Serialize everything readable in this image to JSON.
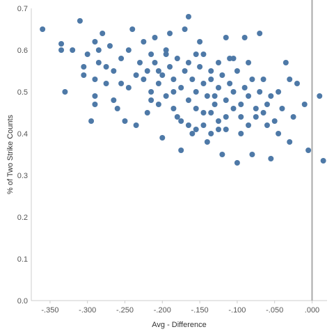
{
  "chart_data": {
    "type": "scatter",
    "xlabel": "Avg - Difference",
    "ylabel": "% of Two Strike Counts",
    "xlim": [
      -0.375,
      0.02
    ],
    "ylim": [
      0.0,
      0.7
    ],
    "x_ticks": [
      -0.35,
      -0.3,
      -0.25,
      -0.2,
      -0.15,
      -0.1,
      -0.05,
      0.0
    ],
    "x_tick_labels": [
      "-.350",
      "-.300",
      "-.250",
      "-.200",
      "-.150",
      "-.100",
      "-.050",
      ".000"
    ],
    "y_ticks": [
      0.0,
      0.1,
      0.2,
      0.3,
      0.4,
      0.5,
      0.6,
      0.7
    ],
    "y_tick_labels": [
      "0.0",
      "0.1",
      "0.2",
      "0.3",
      "0.4",
      "0.5",
      "0.6",
      "0.7"
    ],
    "reference_line_x": 0.0,
    "grid": false,
    "colors": {
      "points": "#4e79a7",
      "reference_line": "#a9a9a9",
      "axis": "#cccccc"
    },
    "points": [
      [
        -0.36,
        0.65
      ],
      [
        -0.335,
        0.615
      ],
      [
        -0.335,
        0.6
      ],
      [
        -0.33,
        0.5
      ],
      [
        -0.32,
        0.6
      ],
      [
        -0.31,
        0.67
      ],
      [
        -0.305,
        0.56
      ],
      [
        -0.305,
        0.54
      ],
      [
        -0.3,
        0.59
      ],
      [
        -0.295,
        0.43
      ],
      [
        -0.29,
        0.62
      ],
      [
        -0.29,
        0.53
      ],
      [
        -0.29,
        0.49
      ],
      [
        -0.29,
        0.47
      ],
      [
        -0.285,
        0.57
      ],
      [
        -0.28,
        0.64
      ],
      [
        -0.275,
        0.56
      ],
      [
        -0.27,
        0.61
      ],
      [
        -0.265,
        0.48
      ],
      [
        -0.26,
        0.46
      ],
      [
        -0.255,
        0.52
      ],
      [
        -0.25,
        0.43
      ],
      [
        -0.245,
        0.6
      ],
      [
        -0.24,
        0.65
      ],
      [
        -0.235,
        0.42
      ],
      [
        -0.23,
        0.57
      ],
      [
        -0.225,
        0.62
      ],
      [
        -0.22,
        0.45
      ],
      [
        -0.215,
        0.48
      ],
      [
        -0.21,
        0.63
      ],
      [
        -0.205,
        0.55
      ],
      [
        -0.2,
        0.39
      ],
      [
        -0.195,
        0.59
      ],
      [
        -0.19,
        0.64
      ],
      [
        -0.185,
        0.5
      ],
      [
        -0.18,
        0.44
      ],
      [
        -0.175,
        0.36
      ],
      [
        -0.17,
        0.65
      ],
      [
        -0.165,
        0.68
      ],
      [
        -0.16,
        0.4
      ],
      [
        -0.155,
        0.59
      ],
      [
        -0.15,
        0.62
      ],
      [
        -0.145,
        0.45
      ],
      [
        -0.14,
        0.38
      ],
      [
        -0.135,
        0.55
      ],
      [
        -0.13,
        0.49
      ],
      [
        -0.125,
        0.41
      ],
      [
        -0.12,
        0.35
      ],
      [
        -0.115,
        0.63
      ],
      [
        -0.11,
        0.58
      ],
      [
        -0.105,
        0.46
      ],
      [
        -0.1,
        0.33
      ],
      [
        -0.095,
        0.4
      ],
      [
        -0.09,
        0.63
      ],
      [
        -0.085,
        0.57
      ],
      [
        -0.08,
        0.35
      ],
      [
        -0.075,
        0.44
      ],
      [
        -0.07,
        0.64
      ],
      [
        -0.065,
        0.53
      ],
      [
        -0.06,
        0.47
      ],
      [
        -0.055,
        0.34
      ],
      [
        -0.05,
        0.43
      ],
      [
        -0.045,
        0.5
      ],
      [
        -0.04,
        0.46
      ],
      [
        -0.035,
        0.57
      ],
      [
        -0.03,
        0.53
      ],
      [
        -0.025,
        0.44
      ],
      [
        -0.02,
        0.52
      ],
      [
        -0.01,
        0.47
      ],
      [
        -0.005,
        0.36
      ],
      [
        0.01,
        0.49
      ],
      [
        0.015,
        0.335
      ],
      [
        -0.03,
        0.38
      ],
      [
        -0.045,
        0.4
      ],
      [
        -0.06,
        0.42
      ],
      [
        -0.225,
        0.53
      ],
      [
        -0.22,
        0.55
      ],
      [
        -0.215,
        0.5
      ],
      [
        -0.21,
        0.57
      ],
      [
        -0.205,
        0.52
      ],
      [
        -0.2,
        0.54
      ],
      [
        -0.195,
        0.49
      ],
      [
        -0.19,
        0.56
      ],
      [
        -0.185,
        0.53
      ],
      [
        -0.18,
        0.58
      ],
      [
        -0.175,
        0.51
      ],
      [
        -0.17,
        0.55
      ],
      [
        -0.165,
        0.48
      ],
      [
        -0.16,
        0.53
      ],
      [
        -0.155,
        0.5
      ],
      [
        -0.15,
        0.56
      ],
      [
        -0.145,
        0.52
      ],
      [
        -0.14,
        0.49
      ],
      [
        -0.135,
        0.53
      ],
      [
        -0.13,
        0.47
      ],
      [
        -0.125,
        0.51
      ],
      [
        -0.12,
        0.54
      ],
      [
        -0.115,
        0.48
      ],
      [
        -0.11,
        0.52
      ],
      [
        -0.105,
        0.5
      ],
      [
        -0.1,
        0.55
      ],
      [
        -0.095,
        0.47
      ],
      [
        -0.09,
        0.51
      ],
      [
        -0.085,
        0.49
      ],
      [
        -0.08,
        0.53
      ],
      [
        -0.075,
        0.46
      ],
      [
        -0.07,
        0.5
      ],
      [
        -0.165,
        0.57
      ],
      [
        -0.155,
        0.46
      ],
      [
        -0.145,
        0.59
      ],
      [
        -0.135,
        0.45
      ],
      [
        -0.125,
        0.57
      ],
      [
        -0.115,
        0.44
      ],
      [
        -0.105,
        0.58
      ],
      [
        -0.095,
        0.44
      ],
      [
        -0.185,
        0.46
      ],
      [
        -0.195,
        0.6
      ],
      [
        -0.205,
        0.47
      ],
      [
        -0.215,
        0.59
      ],
      [
        -0.235,
        0.54
      ],
      [
        -0.245,
        0.51
      ],
      [
        -0.255,
        0.58
      ],
      [
        -0.265,
        0.55
      ],
      [
        -0.275,
        0.52
      ],
      [
        -0.285,
        0.6
      ],
      [
        -0.175,
        0.43
      ],
      [
        -0.165,
        0.42
      ],
      [
        -0.155,
        0.41
      ],
      [
        -0.145,
        0.42
      ],
      [
        -0.135,
        0.4
      ],
      [
        -0.125,
        0.43
      ],
      [
        -0.115,
        0.41
      ],
      [
        -0.085,
        0.42
      ],
      [
        -0.065,
        0.45
      ],
      [
        -0.055,
        0.49
      ]
    ]
  }
}
